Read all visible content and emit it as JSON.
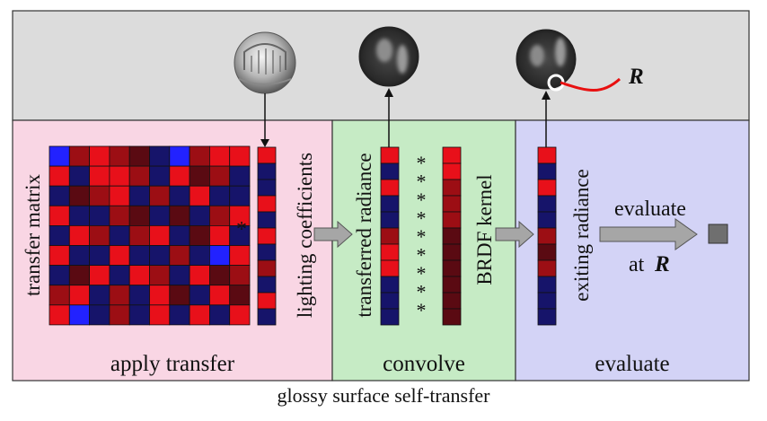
{
  "colors": {
    "top_band": "#dcdcdc",
    "panel_apply": "#f9d6e4",
    "panel_convolve": "#c6ebc5",
    "panel_evaluate": "#d3d3f6",
    "border": "#333333",
    "arrow_gray": "#a6a6a6",
    "highlight": "#e81010",
    "out_square": "#6f6f6f"
  },
  "panels": {
    "apply": {
      "label": "apply transfer"
    },
    "convolve": {
      "label": "convolve"
    },
    "evaluate": {
      "label": "evaluate"
    }
  },
  "labels": {
    "transfer_matrix": "transfer matrix",
    "lighting_coefficients": "lighting coefficients",
    "transferred_radiance": "transferred radiance",
    "brdf_kernel": "BRDF kernel",
    "exiting_radiance": "exiting radiance",
    "multiply_symbol": "*",
    "evaluate_word": "evaluate",
    "at_word": "at",
    "r_symbol": "R"
  },
  "icons": {
    "env_map": "environment-map-sphere-icon",
    "blur_sphere": "blurred-sphere-icon"
  },
  "matrix": [
    [
      "bright-blue",
      "dark-red",
      "red",
      "dark-red",
      "maroon",
      "navy",
      "bright-blue",
      "dark-red",
      "red",
      "red"
    ],
    [
      "red",
      "navy",
      "red",
      "red",
      "dark-red",
      "navy",
      "red",
      "maroon",
      "dark-red",
      "navy"
    ],
    [
      "navy",
      "maroon",
      "dark-red",
      "red",
      "navy",
      "dark-red",
      "navy",
      "red",
      "navy",
      "navy"
    ],
    [
      "red",
      "navy",
      "navy",
      "dark-red",
      "maroon",
      "navy",
      "maroon",
      "navy",
      "dark-red",
      "red"
    ],
    [
      "navy",
      "red",
      "dark-red",
      "navy",
      "dark-red",
      "red",
      "navy",
      "maroon",
      "red",
      "navy"
    ],
    [
      "red",
      "navy",
      "navy",
      "red",
      "navy",
      "navy",
      "dark-red",
      "navy",
      "bright-blue",
      "red"
    ],
    [
      "navy",
      "maroon",
      "red",
      "navy",
      "red",
      "dark-red",
      "navy",
      "red",
      "maroon",
      "dark-red"
    ],
    [
      "dark-red",
      "red",
      "navy",
      "dark-red",
      "navy",
      "red",
      "maroon",
      "navy",
      "red",
      "maroon"
    ],
    [
      "red",
      "bright-blue",
      "navy",
      "dark-red",
      "navy",
      "red",
      "navy",
      "red",
      "navy",
      "red"
    ]
  ],
  "vectors": {
    "lighting": [
      "red",
      "navy",
      "navy",
      "red",
      "navy",
      "red",
      "navy",
      "dark-red",
      "navy",
      "red",
      "navy"
    ],
    "transferred": [
      "red",
      "navy",
      "red",
      "navy",
      "navy",
      "dark-red",
      "red",
      "red",
      "navy",
      "navy",
      "navy"
    ],
    "brdf": [
      "red",
      "red",
      "dark-red",
      "dark-red",
      "dark-red",
      "maroon",
      "maroon",
      "maroon",
      "maroon",
      "maroon",
      "maroon"
    ],
    "exiting": [
      "red",
      "navy",
      "red",
      "navy",
      "navy",
      "dark-red",
      "maroon",
      "dark-red",
      "navy",
      "navy",
      "navy"
    ]
  },
  "swatches": {
    "red": "#e8101a",
    "dark-red": "#9c0e14",
    "maroon": "#5a0a12",
    "navy": "#16146a",
    "bright-blue": "#2222ff"
  },
  "caption": "glossy surface self-transfer"
}
